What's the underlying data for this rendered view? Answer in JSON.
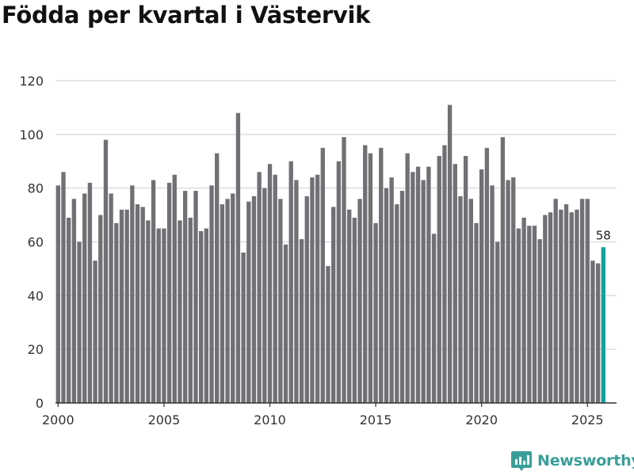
{
  "title": "Födda per kvartal i Västervik",
  "brand": {
    "name": "Newsworthy",
    "icon": "newsworthy-logo-icon"
  },
  "colors": {
    "bar": "#717074",
    "highlight": "#14a19b",
    "grid": "#dedede",
    "axis": "#333333",
    "brand": "#3a9e98"
  },
  "chart_data": {
    "type": "bar",
    "title": "Födda per kvartal i Västervik",
    "xlabel": "",
    "ylabel": "",
    "ylim": [
      0,
      120
    ],
    "yticks": [
      0,
      20,
      40,
      60,
      80,
      100,
      120
    ],
    "xlim": [
      1999.875,
      2026.375
    ],
    "xticks": [
      2000,
      2005,
      2010,
      2015,
      2020,
      2025
    ],
    "start": {
      "year": 2000,
      "quarter": 1
    },
    "values": [
      81,
      86,
      69,
      76,
      60,
      78,
      82,
      53,
      70,
      98,
      78,
      67,
      72,
      72,
      81,
      74,
      73,
      68,
      83,
      65,
      65,
      82,
      85,
      68,
      79,
      69,
      79,
      64,
      65,
      81,
      93,
      74,
      76,
      78,
      108,
      56,
      75,
      77,
      86,
      80,
      89,
      85,
      76,
      59,
      90,
      83,
      61,
      77,
      84,
      85,
      95,
      51,
      73,
      90,
      99,
      72,
      69,
      76,
      96,
      93,
      67,
      95,
      80,
      84,
      74,
      79,
      93,
      86,
      88,
      83,
      88,
      63,
      92,
      96,
      111,
      89,
      77,
      92,
      76,
      67,
      87,
      95,
      81,
      60,
      99,
      83,
      84,
      65,
      69,
      66,
      66,
      61,
      70,
      71,
      76,
      72,
      74,
      71,
      72,
      76,
      76,
      53,
      52,
      58
    ],
    "highlight_last": true,
    "last_value_label": "58"
  }
}
